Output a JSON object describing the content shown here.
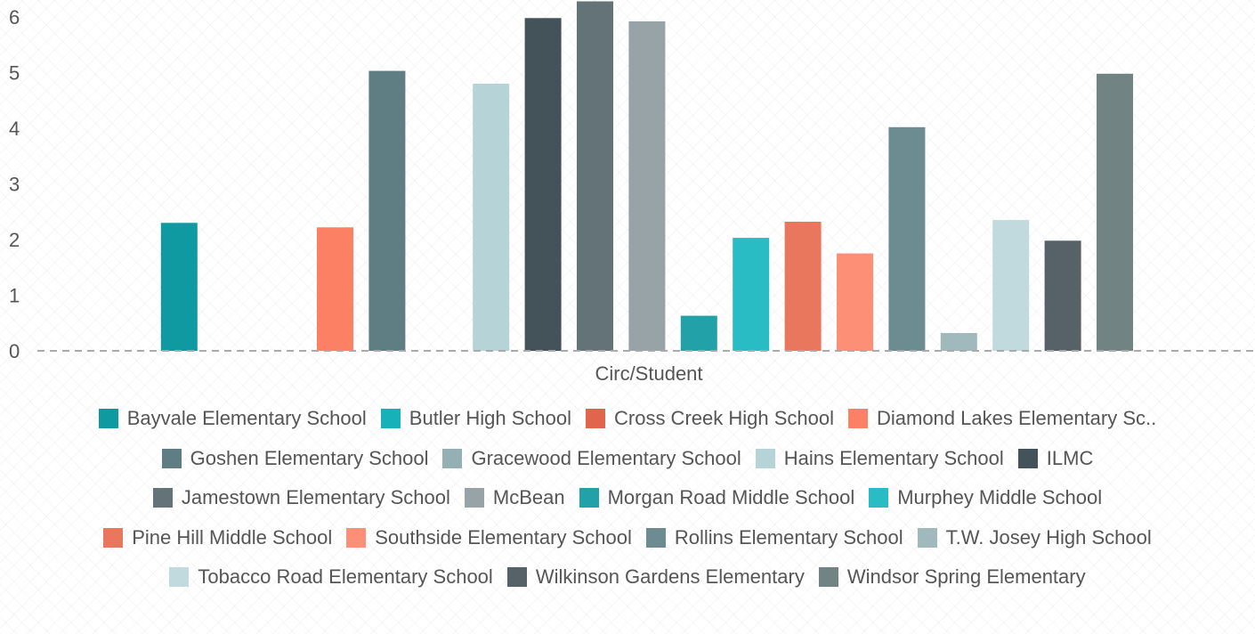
{
  "chart_data": {
    "type": "bar",
    "xlabel": "Circ/Student",
    "ylabel": "",
    "ylim": [
      0,
      6.3
    ],
    "yticks": [
      0,
      1,
      2,
      3,
      4,
      5,
      6
    ],
    "grid": false,
    "legend_position": "bottom",
    "category": "Circ/Student",
    "series": [
      {
        "name": "Bayvale Elementary School",
        "value": 2.3,
        "color": "#0e9aa0"
      },
      {
        "name": "Butler High School",
        "value": 0,
        "color": "#17b2b9"
      },
      {
        "name": "Cross Creek High School",
        "value": 0,
        "color": "#e0654a"
      },
      {
        "name": "Diamond Lakes Elementary Sc..",
        "value": 2.22,
        "color": "#fc8064"
      },
      {
        "name": "Goshen Elementary School",
        "value": 5.03,
        "color": "#5e7e83"
      },
      {
        "name": "Gracewood Elementary School",
        "value": 0,
        "color": "#94b0b4"
      },
      {
        "name": "Hains Elementary School",
        "value": 4.8,
        "color": "#b6d4d8"
      },
      {
        "name": "ILMC",
        "value": 5.98,
        "color": "#44535a"
      },
      {
        "name": "Jamestown Elementary School",
        "value": 6.28,
        "color": "#637377"
      },
      {
        "name": "McBean",
        "value": 5.92,
        "color": "#98a3a7"
      },
      {
        "name": "Morgan Road Middle School",
        "value": 0.63,
        "color": "#22a2a8"
      },
      {
        "name": "Murphey Middle School",
        "value": 2.03,
        "color": "#29bcc4"
      },
      {
        "name": "Pine Hill Middle School",
        "value": 2.32,
        "color": "#e8775e"
      },
      {
        "name": "Southside Elementary School",
        "value": 1.75,
        "color": "#fc8f76"
      },
      {
        "name": "Rollins Elementary School",
        "value": 4.02,
        "color": "#6d8c91"
      },
      {
        "name": "T.W. Josey High School",
        "value": 0.32,
        "color": "#a0b9bd"
      },
      {
        "name": "Tobacco Road Elementary School",
        "value": 2.35,
        "color": "#c0dade"
      },
      {
        "name": "Wilkinson Gardens Elementary",
        "value": 1.98,
        "color": "#566268"
      },
      {
        "name": "Windsor Spring Elementary",
        "value": 4.98,
        "color": "#728383"
      }
    ]
  },
  "legend_rows": [
    [
      0,
      1,
      2,
      3
    ],
    [
      4,
      5,
      6,
      7
    ],
    [
      8,
      9,
      10,
      11
    ],
    [
      12,
      13,
      14,
      15
    ],
    [
      16,
      17,
      18
    ]
  ]
}
